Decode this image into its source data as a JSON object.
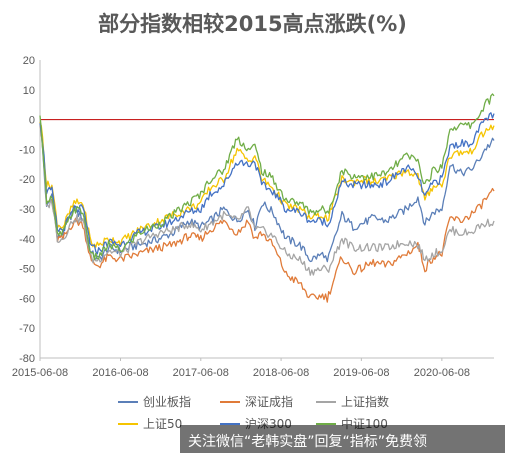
{
  "chart_data": {
    "type": "line",
    "title": "部分指数相较2015高点涨跌(%)",
    "xlabel": "",
    "ylabel": "",
    "x_ticks": [
      "2015-06-08",
      "2016-06-08",
      "2017-06-08",
      "2018-06-08",
      "2019-06-08",
      "2020-06-08"
    ],
    "x_range": [
      "2015-06-08",
      "2021-01-31"
    ],
    "ylim": [
      -80,
      20
    ],
    "y_ticks": [
      20,
      10,
      0,
      -10,
      -20,
      -30,
      -40,
      -50,
      -60,
      -70,
      -80
    ],
    "grid": false,
    "legend_position": "bottom",
    "series": [
      {
        "name": "创业板指",
        "color": "#5b7fb8",
        "points": [
          [
            "2015-06-08",
            0
          ],
          [
            "2015-06-20",
            -10
          ],
          [
            "2015-07-08",
            -30
          ],
          [
            "2015-08-01",
            -25
          ],
          [
            "2015-08-26",
            -40
          ],
          [
            "2015-09-20",
            -38
          ],
          [
            "2015-11-10",
            -30
          ],
          [
            "2015-12-20",
            -33
          ],
          [
            "2016-01-28",
            -45
          ],
          [
            "2016-03-01",
            -47
          ],
          [
            "2016-04-15",
            -43
          ],
          [
            "2016-06-08",
            -44
          ],
          [
            "2016-09-01",
            -42
          ],
          [
            "2016-12-01",
            -40
          ],
          [
            "2017-02-01",
            -38
          ],
          [
            "2017-04-15",
            -34
          ],
          [
            "2017-06-08",
            -36
          ],
          [
            "2017-07-20",
            -34
          ],
          [
            "2017-09-20",
            -30
          ],
          [
            "2017-11-20",
            -34
          ],
          [
            "2018-01-10",
            -30
          ],
          [
            "2018-02-09",
            -36
          ],
          [
            "2018-03-12",
            -28
          ],
          [
            "2018-05-01",
            -31
          ],
          [
            "2018-07-01",
            -40
          ],
          [
            "2018-09-01",
            -42
          ],
          [
            "2018-10-19",
            -47
          ],
          [
            "2018-12-20",
            -45
          ],
          [
            "2019-01-04",
            -48
          ],
          [
            "2019-03-12",
            -32
          ],
          [
            "2019-05-01",
            -36
          ],
          [
            "2019-06-08",
            -35
          ],
          [
            "2019-08-01",
            -33
          ],
          [
            "2019-10-01",
            -34
          ],
          [
            "2019-12-31",
            -30
          ],
          [
            "2020-02-20",
            -26
          ],
          [
            "2020-03-23",
            -35
          ],
          [
            "2020-05-01",
            -31
          ],
          [
            "2020-06-08",
            -30
          ],
          [
            "2020-07-15",
            -15
          ],
          [
            "2020-09-01",
            -18
          ],
          [
            "2020-10-15",
            -17
          ],
          [
            "2020-11-20",
            -14
          ],
          [
            "2020-12-20",
            -10
          ],
          [
            "2021-01-31",
            -7
          ]
        ]
      },
      {
        "name": "深证成指",
        "color": "#e07b39",
        "points": [
          [
            "2015-06-08",
            0
          ],
          [
            "2015-06-20",
            -8
          ],
          [
            "2015-07-08",
            -28
          ],
          [
            "2015-08-01",
            -27
          ],
          [
            "2015-08-26",
            -40
          ],
          [
            "2015-09-20",
            -40
          ],
          [
            "2015-11-10",
            -34
          ],
          [
            "2015-12-20",
            -35
          ],
          [
            "2016-01-28",
            -48
          ],
          [
            "2016-03-01",
            -49
          ],
          [
            "2016-04-15",
            -46
          ],
          [
            "2016-06-08",
            -47
          ],
          [
            "2016-09-01",
            -45
          ],
          [
            "2016-12-01",
            -43
          ],
          [
            "2017-02-01",
            -42
          ],
          [
            "2017-04-15",
            -39
          ],
          [
            "2017-06-08",
            -40
          ],
          [
            "2017-07-20",
            -37
          ],
          [
            "2017-09-20",
            -34
          ],
          [
            "2017-11-20",
            -38
          ],
          [
            "2018-01-10",
            -34
          ],
          [
            "2018-02-09",
            -40
          ],
          [
            "2018-03-12",
            -38
          ],
          [
            "2018-05-01",
            -42
          ],
          [
            "2018-07-01",
            -52
          ],
          [
            "2018-09-01",
            -55
          ],
          [
            "2018-10-19",
            -60
          ],
          [
            "2018-12-20",
            -59
          ],
          [
            "2019-01-04",
            -60
          ],
          [
            "2019-03-12",
            -46
          ],
          [
            "2019-05-01",
            -51
          ],
          [
            "2019-06-08",
            -50
          ],
          [
            "2019-08-01",
            -48
          ],
          [
            "2019-10-01",
            -49
          ],
          [
            "2019-12-31",
            -45
          ],
          [
            "2020-02-20",
            -42
          ],
          [
            "2020-03-23",
            -50
          ],
          [
            "2020-05-01",
            -46
          ],
          [
            "2020-06-08",
            -45
          ],
          [
            "2020-07-15",
            -33
          ],
          [
            "2020-09-01",
            -34
          ],
          [
            "2020-10-15",
            -32
          ],
          [
            "2020-11-20",
            -30
          ],
          [
            "2020-12-20",
            -27
          ],
          [
            "2021-01-31",
            -24
          ]
        ]
      },
      {
        "name": "上证指数",
        "color": "#a5a5a5",
        "points": [
          [
            "2015-06-08",
            0
          ],
          [
            "2015-06-20",
            -9
          ],
          [
            "2015-07-08",
            -30
          ],
          [
            "2015-08-01",
            -27
          ],
          [
            "2015-08-26",
            -40
          ],
          [
            "2015-09-20",
            -40
          ],
          [
            "2015-11-10",
            -33
          ],
          [
            "2015-12-20",
            -34
          ],
          [
            "2016-01-28",
            -47
          ],
          [
            "2016-03-01",
            -47
          ],
          [
            "2016-04-15",
            -44
          ],
          [
            "2016-06-08",
            -45
          ],
          [
            "2016-09-01",
            -41
          ],
          [
            "2016-12-01",
            -38
          ],
          [
            "2017-02-01",
            -37
          ],
          [
            "2017-04-15",
            -35
          ],
          [
            "2017-06-08",
            -37
          ],
          [
            "2017-07-20",
            -35
          ],
          [
            "2017-09-20",
            -32
          ],
          [
            "2017-11-20",
            -34
          ],
          [
            "2018-01-10",
            -30
          ],
          [
            "2018-02-09",
            -37
          ],
          [
            "2018-03-12",
            -37
          ],
          [
            "2018-05-01",
            -39
          ],
          [
            "2018-07-01",
            -45
          ],
          [
            "2018-09-01",
            -47
          ],
          [
            "2018-10-19",
            -51
          ],
          [
            "2018-12-20",
            -50
          ],
          [
            "2019-01-04",
            -51
          ],
          [
            "2019-03-12",
            -40
          ],
          [
            "2019-05-01",
            -43
          ],
          [
            "2019-06-08",
            -43
          ],
          [
            "2019-08-01",
            -43
          ],
          [
            "2019-10-01",
            -43
          ],
          [
            "2019-12-31",
            -41
          ],
          [
            "2020-02-20",
            -42
          ],
          [
            "2020-03-23",
            -47
          ],
          [
            "2020-05-01",
            -45
          ],
          [
            "2020-06-08",
            -44
          ],
          [
            "2020-07-15",
            -37
          ],
          [
            "2020-09-01",
            -38
          ],
          [
            "2020-10-15",
            -38
          ],
          [
            "2020-11-20",
            -36
          ],
          [
            "2020-12-20",
            -35
          ],
          [
            "2021-01-31",
            -34
          ]
        ]
      },
      {
        "name": "上证50",
        "color": "#f5c400",
        "points": [
          [
            "2015-06-08",
            0
          ],
          [
            "2015-06-20",
            -6
          ],
          [
            "2015-07-08",
            -22
          ],
          [
            "2015-08-01",
            -22
          ],
          [
            "2015-08-26",
            -35
          ],
          [
            "2015-09-20",
            -36
          ],
          [
            "2015-11-10",
            -28
          ],
          [
            "2015-12-20",
            -28
          ],
          [
            "2016-01-28",
            -42
          ],
          [
            "2016-03-01",
            -42
          ],
          [
            "2016-04-15",
            -40
          ],
          [
            "2016-06-08",
            -41
          ],
          [
            "2016-09-01",
            -37
          ],
          [
            "2016-12-01",
            -34
          ],
          [
            "2017-02-01",
            -32
          ],
          [
            "2017-04-15",
            -30
          ],
          [
            "2017-06-08",
            -28
          ],
          [
            "2017-07-20",
            -23
          ],
          [
            "2017-09-20",
            -20
          ],
          [
            "2017-11-20",
            -10
          ],
          [
            "2018-01-10",
            -14
          ],
          [
            "2018-02-09",
            -12
          ],
          [
            "2018-03-12",
            -20
          ],
          [
            "2018-05-01",
            -23
          ],
          [
            "2018-07-01",
            -29
          ],
          [
            "2018-09-01",
            -30
          ],
          [
            "2018-10-19",
            -33
          ],
          [
            "2018-12-20",
            -32
          ],
          [
            "2019-01-04",
            -34
          ],
          [
            "2019-03-12",
            -20
          ],
          [
            "2019-05-01",
            -21
          ],
          [
            "2019-06-08",
            -20
          ],
          [
            "2019-08-01",
            -21
          ],
          [
            "2019-10-01",
            -20
          ],
          [
            "2019-12-31",
            -17
          ],
          [
            "2020-02-20",
            -19
          ],
          [
            "2020-03-23",
            -27
          ],
          [
            "2020-05-01",
            -22
          ],
          [
            "2020-06-08",
            -22
          ],
          [
            "2020-07-15",
            -12
          ],
          [
            "2020-09-01",
            -11
          ],
          [
            "2020-10-15",
            -11
          ],
          [
            "2020-11-20",
            -7
          ],
          [
            "2020-12-20",
            -4
          ],
          [
            "2021-01-31",
            -2
          ]
        ]
      },
      {
        "name": "沪深300",
        "color": "#4472c4",
        "points": [
          [
            "2015-06-08",
            0
          ],
          [
            "2015-06-20",
            -7
          ],
          [
            "2015-07-08",
            -24
          ],
          [
            "2015-08-01",
            -24
          ],
          [
            "2015-08-26",
            -37
          ],
          [
            "2015-09-20",
            -37
          ],
          [
            "2015-11-10",
            -30
          ],
          [
            "2015-12-20",
            -30
          ],
          [
            "2016-01-28",
            -43
          ],
          [
            "2016-03-01",
            -44
          ],
          [
            "2016-04-15",
            -41
          ],
          [
            "2016-06-08",
            -42
          ],
          [
            "2016-09-01",
            -38
          ],
          [
            "2016-12-01",
            -36
          ],
          [
            "2017-02-01",
            -34
          ],
          [
            "2017-04-15",
            -31
          ],
          [
            "2017-06-08",
            -30
          ],
          [
            "2017-07-20",
            -25
          ],
          [
            "2017-09-20",
            -22
          ],
          [
            "2017-11-20",
            -14
          ],
          [
            "2018-01-10",
            -15
          ],
          [
            "2018-02-09",
            -14
          ],
          [
            "2018-03-12",
            -22
          ],
          [
            "2018-05-01",
            -24
          ],
          [
            "2018-07-01",
            -30
          ],
          [
            "2018-09-01",
            -31
          ],
          [
            "2018-10-19",
            -34
          ],
          [
            "2018-12-20",
            -34
          ],
          [
            "2019-01-04",
            -36
          ],
          [
            "2019-03-12",
            -21
          ],
          [
            "2019-05-01",
            -22
          ],
          [
            "2019-06-08",
            -22
          ],
          [
            "2019-08-01",
            -22
          ],
          [
            "2019-10-01",
            -21
          ],
          [
            "2019-12-31",
            -16
          ],
          [
            "2020-02-20",
            -19
          ],
          [
            "2020-03-23",
            -26
          ],
          [
            "2020-05-01",
            -21
          ],
          [
            "2020-06-08",
            -20
          ],
          [
            "2020-07-15",
            -9
          ],
          [
            "2020-09-01",
            -8
          ],
          [
            "2020-10-15",
            -8
          ],
          [
            "2020-11-20",
            -4
          ],
          [
            "2020-12-20",
            0
          ],
          [
            "2021-01-31",
            2
          ]
        ]
      },
      {
        "name": "中证100",
        "color": "#70ad47",
        "points": [
          [
            "2015-06-08",
            0
          ],
          [
            "2015-06-20",
            -8
          ],
          [
            "2015-07-08",
            -27
          ],
          [
            "2015-08-01",
            -26
          ],
          [
            "2015-08-26",
            -39
          ],
          [
            "2015-09-20",
            -38
          ],
          [
            "2015-11-10",
            -30
          ],
          [
            "2015-12-20",
            -31
          ],
          [
            "2016-01-28",
            -46
          ],
          [
            "2016-03-01",
            -46
          ],
          [
            "2016-04-15",
            -42
          ],
          [
            "2016-06-08",
            -44
          ],
          [
            "2016-09-01",
            -38
          ],
          [
            "2016-12-01",
            -35
          ],
          [
            "2017-02-01",
            -32
          ],
          [
            "2017-04-15",
            -28
          ],
          [
            "2017-06-08",
            -25
          ],
          [
            "2017-07-20",
            -20
          ],
          [
            "2017-09-20",
            -17
          ],
          [
            "2017-11-20",
            -6
          ],
          [
            "2018-01-10",
            -10
          ],
          [
            "2018-02-09",
            -9
          ],
          [
            "2018-03-12",
            -17
          ],
          [
            "2018-05-01",
            -20
          ],
          [
            "2018-07-01",
            -27
          ],
          [
            "2018-09-01",
            -28
          ],
          [
            "2018-10-19",
            -31
          ],
          [
            "2018-12-20",
            -30
          ],
          [
            "2019-01-04",
            -32
          ],
          [
            "2019-03-12",
            -17
          ],
          [
            "2019-05-01",
            -19
          ],
          [
            "2019-06-08",
            -19
          ],
          [
            "2019-08-01",
            -19
          ],
          [
            "2019-10-01",
            -18
          ],
          [
            "2019-12-31",
            -12
          ],
          [
            "2020-02-20",
            -14
          ],
          [
            "2020-03-23",
            -22
          ],
          [
            "2020-05-01",
            -17
          ],
          [
            "2020-06-08",
            -16
          ],
          [
            "2020-07-15",
            -3
          ],
          [
            "2020-09-01",
            -2
          ],
          [
            "2020-10-15",
            -2
          ],
          [
            "2020-11-20",
            1
          ],
          [
            "2020-12-20",
            5
          ],
          [
            "2021-01-31",
            8
          ]
        ]
      }
    ]
  },
  "watermark": {
    "text": "关注微信“老韩实盘”回复“指标”免费领",
    "color": "#000000"
  }
}
